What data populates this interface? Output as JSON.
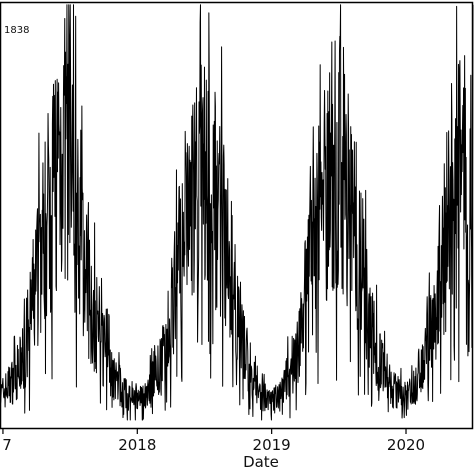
{
  "chart_data": {
    "type": "line",
    "title": "",
    "xlabel": "Date",
    "ylabel": "",
    "x_ticks": [
      {
        "date": "2017-01-01",
        "label": "7"
      },
      {
        "date": "2018-01-01",
        "label": "2018"
      },
      {
        "date": "2019-01-01",
        "label": "2019"
      },
      {
        "date": "2020-01-01",
        "label": "2020"
      }
    ],
    "xlim": [
      "2016-12-24",
      "2020-07-01"
    ],
    "ylim": [
      0,
      1850
    ],
    "annotation": "1838",
    "grid": false,
    "legend": "none",
    "line_color": "#000000",
    "series": [
      {
        "x": [
          "2016-12-24",
          "2017-01-15",
          "2017-02-05",
          "2017-02-26",
          "2017-03-19",
          "2017-04-09",
          "2017-04-30",
          "2017-05-21",
          "2017-06-11",
          "2017-07-02",
          "2017-07-23",
          "2017-08-13",
          "2017-09-03",
          "2017-09-24",
          "2017-10-15",
          "2017-11-05",
          "2017-11-26",
          "2017-12-17",
          "2018-01-07",
          "2018-01-28",
          "2018-02-18",
          "2018-03-11",
          "2018-04-01",
          "2018-04-22",
          "2018-05-13",
          "2018-06-03",
          "2018-06-24",
          "2018-07-15",
          "2018-08-05",
          "2018-08-26",
          "2018-09-16",
          "2018-10-07",
          "2018-10-28",
          "2018-11-18",
          "2018-12-09",
          "2018-12-30",
          "2019-01-20",
          "2019-02-10",
          "2019-03-03",
          "2019-03-24",
          "2019-04-14",
          "2019-05-05",
          "2019-05-26",
          "2019-06-16",
          "2019-07-07",
          "2019-07-28",
          "2019-08-18",
          "2019-09-08",
          "2019-09-29",
          "2019-10-20",
          "2019-11-10",
          "2019-12-01",
          "2019-12-22",
          "2020-01-12",
          "2020-02-02",
          "2020-02-23",
          "2020-03-15",
          "2020-04-05",
          "2020-04-26",
          "2020-05-17",
          "2020-06-07",
          "2020-06-28"
        ],
        "y": [
          150,
          200,
          250,
          330,
          560,
          800,
          1000,
          1230,
          1380,
          1280,
          980,
          730,
          560,
          420,
          300,
          230,
          170,
          140,
          130,
          170,
          230,
          330,
          520,
          760,
          1000,
          1130,
          1180,
          1200,
          1100,
          930,
          690,
          460,
          310,
          210,
          150,
          120,
          150,
          220,
          330,
          520,
          760,
          1010,
          1180,
          1260,
          1300,
          1150,
          930,
          730,
          510,
          340,
          230,
          180,
          150,
          170,
          240,
          330,
          560,
          790,
          1010,
          1150,
          1230,
          1190
        ]
      }
    ]
  }
}
